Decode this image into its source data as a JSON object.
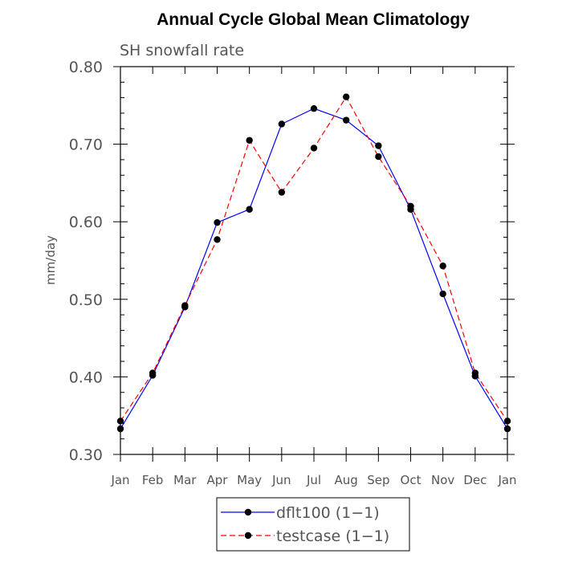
{
  "chart_data": {
    "type": "line",
    "title": "Annual Cycle Global Mean Climatology",
    "subtitle": "SH snowfall rate",
    "ylabel": "mm/day",
    "xlabel": "",
    "categories": [
      "Jan",
      "Feb",
      "Mar",
      "Apr",
      "May",
      "Jun",
      "Jul",
      "Aug",
      "Sep",
      "Oct",
      "Nov",
      "Dec",
      "Jan"
    ],
    "ylim": [
      0.3,
      0.8
    ],
    "yticks": [
      "0.30",
      "0.40",
      "0.50",
      "0.60",
      "0.70",
      "0.80"
    ],
    "grid": false,
    "legend_position": "bottom-center",
    "series": [
      {
        "name": "dflt100 (1−1)",
        "color": "#0000ff",
        "line_style": "solid",
        "values": [
          0.333,
          0.402,
          0.49,
          0.599,
          0.616,
          0.726,
          0.746,
          0.731,
          0.698,
          0.616,
          0.507,
          0.401,
          0.333
        ]
      },
      {
        "name": "testcase (1−1)",
        "color": "#ff0000",
        "line_style": "dashed",
        "values": [
          0.343,
          0.405,
          0.492,
          0.577,
          0.705,
          0.638,
          0.695,
          0.761,
          0.684,
          0.62,
          0.543,
          0.405,
          0.343
        ]
      }
    ]
  }
}
